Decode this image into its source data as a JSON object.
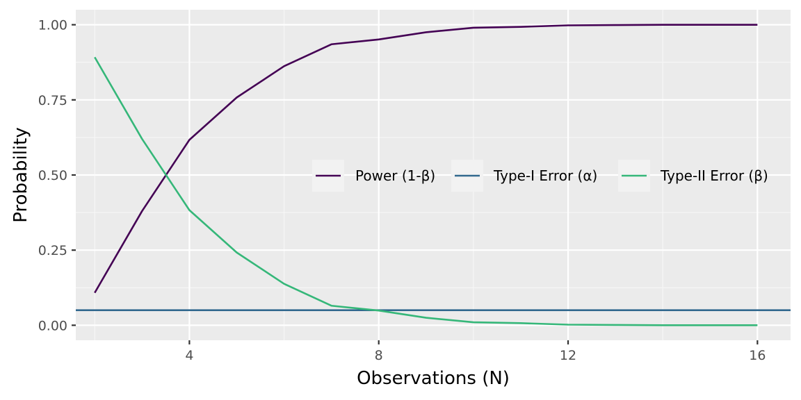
{
  "chart_data": {
    "type": "line",
    "title": "",
    "xlabel": "Observations (N)",
    "ylabel": "Probability",
    "xlim": [
      1.6,
      16.7
    ],
    "ylim": [
      -0.05,
      1.05
    ],
    "x_ticks": [
      4,
      8,
      12,
      16
    ],
    "x_tick_labels": [
      "4",
      "8",
      "12",
      "16"
    ],
    "y_ticks": [
      0,
      0.25,
      0.5,
      0.75,
      1.0
    ],
    "y_tick_labels": [
      "0.00",
      "0.25",
      "0.50",
      "0.75",
      "1.00"
    ],
    "x_minor_ticks": [
      2,
      6,
      10,
      14
    ],
    "y_minor_ticks": [
      0.125,
      0.375,
      0.625,
      0.875
    ],
    "grid": true,
    "legend_position": "right-center",
    "series": [
      {
        "name": "Power (1-β)",
        "color": "#440154",
        "x": [
          2,
          3,
          4,
          5,
          6,
          7,
          8,
          9,
          10,
          11,
          12,
          13,
          14,
          15,
          16
        ],
        "y": [
          0.108,
          0.38,
          0.617,
          0.758,
          0.862,
          0.935,
          0.951,
          0.975,
          0.99,
          0.993,
          0.998,
          0.999,
          1.0,
          1.0,
          1.0
        ]
      },
      {
        "name": "Type-I Error (α)",
        "color": "#31688e",
        "hline": 0.05
      },
      {
        "name": "Type-II Error (β)",
        "color": "#35b779",
        "x": [
          2,
          3,
          4,
          5,
          6,
          7,
          8,
          9,
          10,
          11,
          12,
          13,
          14,
          15,
          16
        ],
        "y": [
          0.892,
          0.62,
          0.383,
          0.242,
          0.138,
          0.065,
          0.049,
          0.025,
          0.01,
          0.007,
          0.002,
          0.001,
          0.0,
          0.0,
          0.0
        ]
      }
    ]
  }
}
